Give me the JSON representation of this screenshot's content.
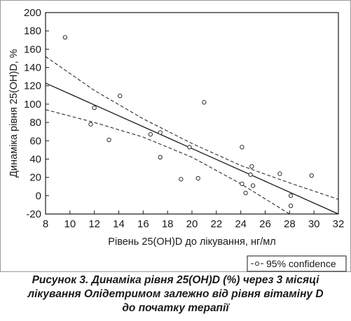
{
  "chart_data": {
    "type": "scatter",
    "xlabel": "Рівень  25(OH)D до лікування, нг/мл",
    "ylabel": "Динаміка рівня  25(OH)D, %",
    "xlim": [
      8,
      32
    ],
    "ylim": [
      -20,
      200
    ],
    "xticks": [
      8,
      10,
      12,
      14,
      16,
      18,
      20,
      22,
      24,
      26,
      28,
      30,
      32
    ],
    "yticks": [
      -20,
      0,
      20,
      40,
      60,
      80,
      100,
      120,
      140,
      160,
      180,
      200
    ],
    "grid": false,
    "points": [
      {
        "x": 9.6,
        "y": 173
      },
      {
        "x": 11.7,
        "y": 78
      },
      {
        "x": 12.0,
        "y": 96
      },
      {
        "x": 13.2,
        "y": 61
      },
      {
        "x": 14.1,
        "y": 109
      },
      {
        "x": 16.6,
        "y": 67
      },
      {
        "x": 17.4,
        "y": 42
      },
      {
        "x": 17.4,
        "y": 69
      },
      {
        "x": 19.1,
        "y": 18
      },
      {
        "x": 19.8,
        "y": 53
      },
      {
        "x": 20.5,
        "y": 19
      },
      {
        "x": 21.0,
        "y": 102
      },
      {
        "x": 24.1,
        "y": 53
      },
      {
        "x": 24.1,
        "y": 13
      },
      {
        "x": 24.4,
        "y": 3
      },
      {
        "x": 24.8,
        "y": 23
      },
      {
        "x": 24.9,
        "y": 32
      },
      {
        "x": 25.0,
        "y": 11
      },
      {
        "x": 27.2,
        "y": 24
      },
      {
        "x": 28.1,
        "y": 0
      },
      {
        "x": 28.1,
        "y": -11
      },
      {
        "x": 29.8,
        "y": 22
      }
    ],
    "regression_line": [
      {
        "x": 8,
        "y": 123
      },
      {
        "x": 32,
        "y": -20
      }
    ],
    "confidence_upper": [
      {
        "x": 8,
        "y": 152
      },
      {
        "x": 12,
        "y": 115
      },
      {
        "x": 16,
        "y": 84
      },
      {
        "x": 20,
        "y": 57
      },
      {
        "x": 24,
        "y": 33
      },
      {
        "x": 28,
        "y": 14
      },
      {
        "x": 30,
        "y": 5
      },
      {
        "x": 32,
        "y": -4
      }
    ],
    "confidence_lower": [
      {
        "x": 8,
        "y": 94
      },
      {
        "x": 12,
        "y": 80
      },
      {
        "x": 16,
        "y": 64
      },
      {
        "x": 20,
        "y": 42
      },
      {
        "x": 24,
        "y": 13
      },
      {
        "x": 28,
        "y": -20
      }
    ],
    "legend": {
      "label": "95% confidence",
      "placement": "bottom-right"
    }
  },
  "caption": {
    "line1": "Рисунок 3. Динаміка рівня 25(OH)D (%) через 3 місяці",
    "line2": "лікування Олідетримом залежно від рівня вітаміну D",
    "line3": "до початку терапії"
  },
  "colors": {
    "ink": "#1a1a1a",
    "frame": "#9a9a9a"
  }
}
